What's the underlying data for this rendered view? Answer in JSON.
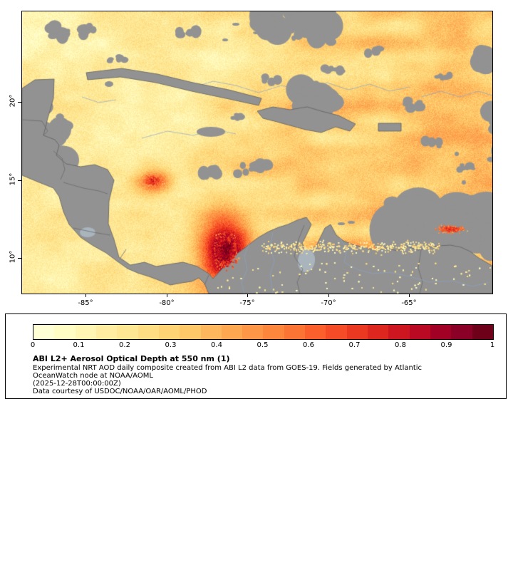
{
  "figure": {
    "map": {
      "lat_tick_labels": [
        "20°",
        "15°",
        "10°"
      ],
      "lon_tick_labels": [
        "-85°",
        "-80°",
        "-75°",
        "-70°",
        "-65°"
      ],
      "land_color": "#929292",
      "lake_color": "#a9b4bd",
      "border_line_color": "#6b6b6b",
      "river_line_color": "#8aa4c4",
      "frame_color": "#000000"
    },
    "colorbar": {
      "tick_labels": [
        "0",
        "0.1",
        "0.2",
        "0.3",
        "0.4",
        "0.5",
        "0.6",
        "0.7",
        "0.8",
        "0.9",
        "1"
      ],
      "min": 0,
      "max": 1,
      "colors": [
        "#ffffd6",
        "#fffcc4",
        "#fff6b3",
        "#ffeea2",
        "#fee792",
        "#fedd83",
        "#fed374",
        "#fec768",
        "#feb75c",
        "#fda751",
        "#fd9747",
        "#fd863d",
        "#fc7434",
        "#fb5f2b",
        "#f54b26",
        "#eb3820",
        "#dd261e",
        "#cd161f",
        "#ba0923",
        "#a30026",
        "#8a0026",
        "#6e001a"
      ]
    },
    "legend": {
      "title": "ABI L2+ Aerosol Optical Depth at 550 nm (1)",
      "desc_line1": "Experimental NRT AOD daily composite created from ABI L2 data from GOES-19. Fields generated by Atlantic",
      "desc_line2": "OceanWatch node at NOAA/AOML",
      "timestamp": "(2025-12-28T00:00:00Z)",
      "credit": "Data courtesy of USDOC/NOAA/OAR/AOML/PHOD"
    }
  }
}
